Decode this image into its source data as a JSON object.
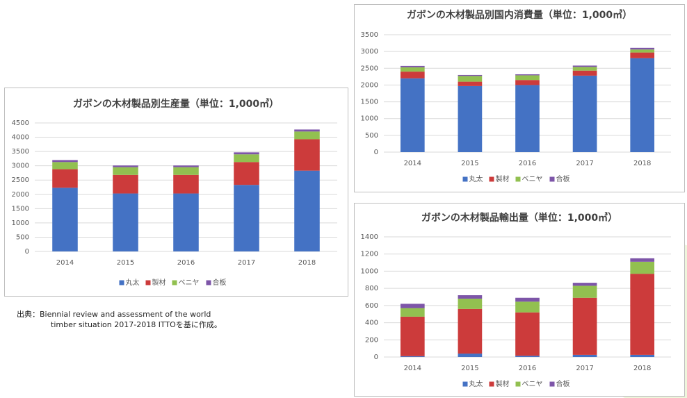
{
  "chart_data": [
    {
      "type": "bar",
      "stacked": true,
      "title": "ガボンの木材製品別生産量（単位：1,000㎥）",
      "categories": [
        "2014",
        "2015",
        "2016",
        "2017",
        "2018"
      ],
      "series": [
        {
          "name": "丸太",
          "color": "#4472c4",
          "values": [
            2230,
            2030,
            2030,
            2330,
            2830
          ]
        },
        {
          "name": "製材",
          "color": "#cc3b3b",
          "values": [
            650,
            650,
            650,
            800,
            1100
          ]
        },
        {
          "name": "ベニヤ",
          "color": "#92c050",
          "values": [
            250,
            270,
            270,
            270,
            270
          ]
        },
        {
          "name": "合板",
          "color": "#7d55a8",
          "values": [
            70,
            60,
            60,
            70,
            70
          ]
        }
      ],
      "ylim": [
        0,
        4500
      ],
      "yticks": [
        0,
        500,
        1000,
        1500,
        2000,
        2500,
        3000,
        3500,
        4000,
        4500
      ],
      "grid": true,
      "legend": "bottom"
    },
    {
      "type": "bar",
      "stacked": true,
      "title": "ガボンの木材製品別国内消費量（単位：1,000㎥）",
      "categories": [
        "2014",
        "2015",
        "2016",
        "2017",
        "2018"
      ],
      "series": [
        {
          "name": "丸太",
          "color": "#4472c4",
          "values": [
            2200,
            1970,
            2000,
            2280,
            2800
          ]
        },
        {
          "name": "製材",
          "color": "#cc3b3b",
          "values": [
            200,
            130,
            150,
            150,
            170
          ]
        },
        {
          "name": "ベニヤ",
          "color": "#92c050",
          "values": [
            130,
            170,
            140,
            110,
            90
          ]
        },
        {
          "name": "合板",
          "color": "#7d55a8",
          "values": [
            40,
            30,
            30,
            40,
            50
          ]
        }
      ],
      "ylim": [
        0,
        3500
      ],
      "yticks": [
        0,
        500,
        1000,
        1500,
        2000,
        2500,
        3000,
        3500
      ],
      "grid": true,
      "legend": "bottom"
    },
    {
      "type": "bar",
      "stacked": true,
      "title": "ガボンの木材製品輸出量（単位：1,000㎥）",
      "categories": [
        "2014",
        "2015",
        "2016",
        "2017",
        "2018"
      ],
      "series": [
        {
          "name": "丸太",
          "color": "#4472c4",
          "values": [
            10,
            40,
            15,
            25,
            25
          ]
        },
        {
          "name": "製材",
          "color": "#cc3b3b",
          "values": [
            460,
            520,
            505,
            665,
            945
          ]
        },
        {
          "name": "ベニヤ",
          "color": "#92c050",
          "values": [
            100,
            120,
            125,
            140,
            140
          ]
        },
        {
          "name": "合板",
          "color": "#7d55a8",
          "values": [
            50,
            40,
            45,
            35,
            40
          ]
        }
      ],
      "ylim": [
        0,
        1400
      ],
      "yticks": [
        0,
        200,
        400,
        600,
        800,
        1000,
        1200,
        1400
      ],
      "grid": true,
      "legend": "bottom"
    }
  ],
  "source": [
    "出典：Biennial review and assessment of the world",
    "timber situation 2017-2018 ITTOを基に作成。"
  ]
}
